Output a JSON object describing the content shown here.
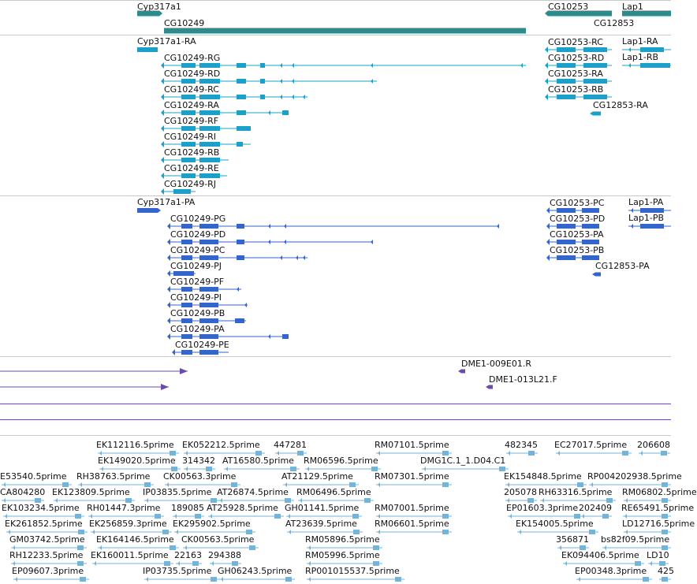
{
  "colors": {
    "gene": "#2e8b8b",
    "mrna": "#1ba0c9",
    "cds": "#3366cc",
    "clone": "#6a4ca8",
    "est": "#74b4d8"
  },
  "genes": [
    {
      "label": "Cyp317a1"
    },
    {
      "label": "CG10249"
    },
    {
      "label": "CG10253"
    },
    {
      "label": "CG12853"
    },
    {
      "label": "Lap1"
    }
  ],
  "transcripts": [
    {
      "label": "Cyp317a1-RA"
    },
    {
      "label": "CG10249-RG"
    },
    {
      "label": "CG10249-RD"
    },
    {
      "label": "CG10249-RC"
    },
    {
      "label": "CG10249-RA"
    },
    {
      "label": "CG10249-RF"
    },
    {
      "label": "CG10249-RI"
    },
    {
      "label": "CG10249-RB"
    },
    {
      "label": "CG10249-RE"
    },
    {
      "label": "CG10249-RJ"
    },
    {
      "label": "CG10253-RC"
    },
    {
      "label": "CG10253-RD"
    },
    {
      "label": "CG10253-RA"
    },
    {
      "label": "CG10253-RB"
    },
    {
      "label": "CG12853-RA"
    },
    {
      "label": "Lap1-RA"
    },
    {
      "label": "Lap1-RB"
    }
  ],
  "proteins": [
    {
      "label": "Cyp317a1-PA"
    },
    {
      "label": "CG10249-PG"
    },
    {
      "label": "CG10249-PD"
    },
    {
      "label": "CG10249-PC"
    },
    {
      "label": "CG10249-PJ"
    },
    {
      "label": "CG10249-PF"
    },
    {
      "label": "CG10249-PI"
    },
    {
      "label": "CG10249-PB"
    },
    {
      "label": "CG10249-PA"
    },
    {
      "label": "CG10249-PE"
    },
    {
      "label": "CG10253-PC"
    },
    {
      "label": "CG10253-PD"
    },
    {
      "label": "CG10253-PA"
    },
    {
      "label": "CG10253-PB"
    },
    {
      "label": "CG12853-PA"
    },
    {
      "label": "Lap1-PA"
    },
    {
      "label": "Lap1-PB"
    }
  ],
  "clones": [
    {
      "label": "DME1-009E01.R"
    },
    {
      "label": "DME1-013L21.F"
    }
  ],
  "ests": [
    {
      "label": "EK112116.5prime"
    },
    {
      "label": "EK052212.5prime"
    },
    {
      "label": "447281"
    },
    {
      "label": "RM07101.5prime"
    },
    {
      "label": "482345"
    },
    {
      "label": "EC27017.5prime"
    },
    {
      "label": "206608"
    },
    {
      "label": "EK149020.5prime"
    },
    {
      "label": "314342"
    },
    {
      "label": "AT16580.5prime"
    },
    {
      "label": "RM06596.5prime"
    },
    {
      "label": "DMG1C.1_1.D04.C1"
    },
    {
      "label": "E53540.5prime"
    },
    {
      "label": "RH38763.5prime"
    },
    {
      "label": "CK00563.3prime"
    },
    {
      "label": "AT21129.5prime"
    },
    {
      "label": "RM07301.5prime"
    },
    {
      "label": "EK154848.5prime"
    },
    {
      "label": "RP004202938.5prime"
    },
    {
      "label": "CA804280"
    },
    {
      "label": "EK123809.5prime"
    },
    {
      "label": "IP03835.5prime"
    },
    {
      "label": "AT26874.5prime"
    },
    {
      "label": "RM06496.5prime"
    },
    {
      "label": "205078"
    },
    {
      "label": "RH63316.5prime"
    },
    {
      "label": "RM06802.5prime"
    },
    {
      "label": "EK103234.5prime"
    },
    {
      "label": "RH01447.3prime"
    },
    {
      "label": "189085"
    },
    {
      "label": "AT25928.5prime"
    },
    {
      "label": "GH01141.5prime"
    },
    {
      "label": "RM07001.5prime"
    },
    {
      "label": "EP01603.3prime"
    },
    {
      "label": "202409"
    },
    {
      "label": "RE65491.5prime"
    },
    {
      "label": "EK261852.5prime"
    },
    {
      "label": "EK256859.3prime"
    },
    {
      "label": "EK295902.5prime"
    },
    {
      "label": "AT23639.5prime"
    },
    {
      "label": "RM06601.5prime"
    },
    {
      "label": "EK154005.5prime"
    },
    {
      "label": "LD12716.5prime"
    },
    {
      "label": "GM03742.5prime"
    },
    {
      "label": "EK164146.5prime"
    },
    {
      "label": "CK00563.5prime"
    },
    {
      "label": "RM05896.5prime"
    },
    {
      "label": "356871"
    },
    {
      "label": "bs82f09.5prime"
    },
    {
      "label": "RH12233.5prime"
    },
    {
      "label": "EK160011.5prime"
    },
    {
      "label": "22163"
    },
    {
      "label": "294388"
    },
    {
      "label": "RM05996.5prime"
    },
    {
      "label": "EK094406.5prime"
    },
    {
      "label": "LD10"
    },
    {
      "label": "EP09607.3prime"
    },
    {
      "label": "IP03735.5prime"
    },
    {
      "label": "GH06243.5prime"
    },
    {
      "label": "RP001015537.5prime"
    },
    {
      "label": "EP00348.3prime"
    },
    {
      "label": "425"
    }
  ]
}
